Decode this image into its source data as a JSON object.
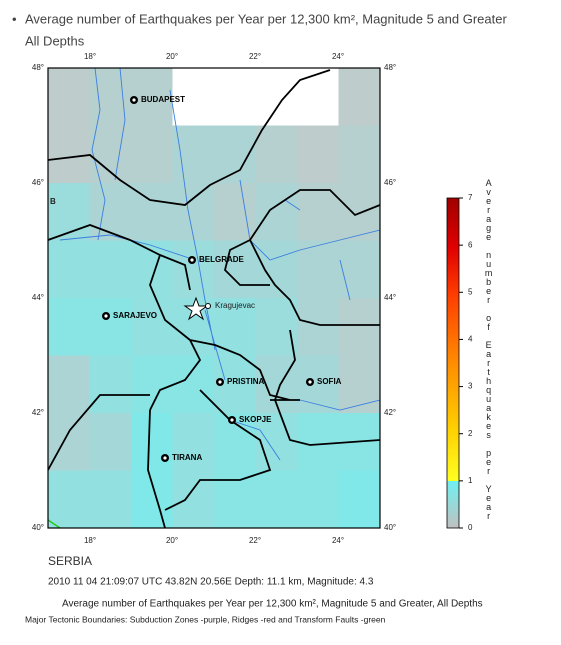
{
  "header": {
    "title": "Average number of Earthquakes per Year per 12,300 km², Magnitude 5 and Greater",
    "subtitle": "All Depths"
  },
  "map": {
    "lon_labels": [
      "18°",
      "20°",
      "22°",
      "24°"
    ],
    "lat_labels": [
      "48°",
      "46°",
      "44°",
      "42°",
      "40°"
    ],
    "corner_mark": "B",
    "cities": [
      "BUDAPEST",
      "BELGRADE",
      "Kragujevac",
      "SARAJEVO",
      "PRISTINA",
      "SOFIA",
      "SKOPJE",
      "TIRANA"
    ],
    "cells": [
      [
        0.1,
        0.2,
        0.2,
        0,
        0,
        0,
        0,
        0.1
      ],
      [
        0.1,
        0.2,
        0.2,
        0.3,
        0.3,
        0.2,
        0.1,
        0.2
      ],
      [
        0.5,
        0.3,
        0.3,
        0.3,
        0.2,
        0.3,
        0.2,
        0.2
      ],
      [
        0.6,
        0.6,
        0.6,
        0.5,
        0.4,
        0.4,
        0.3,
        0.3
      ],
      [
        0.7,
        0.7,
        0.6,
        0.6,
        0.6,
        0.5,
        0.3,
        0.2
      ],
      [
        0.3,
        0.6,
        0.7,
        0.7,
        0.6,
        0.4,
        0.4,
        0.2
      ],
      [
        0.3,
        0.4,
        0.8,
        0.6,
        0.7,
        0.6,
        0.7,
        0.7
      ],
      [
        0.6,
        0.6,
        0.8,
        0.6,
        0.7,
        0.7,
        0.7,
        0.8
      ]
    ]
  },
  "colorbar": {
    "ticks": [
      0,
      1,
      2,
      3,
      4,
      5,
      6,
      7
    ],
    "label": "Average number of Earthquakes per Year"
  },
  "footer": {
    "region": "SERBIA",
    "event": "2010 11 04 21:09:07 UTC 43.82N 20.56E Depth: 11.1 km, Magnitude: 4.3",
    "caption": "Average number of Earthquakes per Year per 12,300 km², Magnitude 5 and Greater, All Depths",
    "legend": "Major Tectonic Boundaries: Subduction Zones -purple, Ridges -red and Transform Faults -green"
  }
}
